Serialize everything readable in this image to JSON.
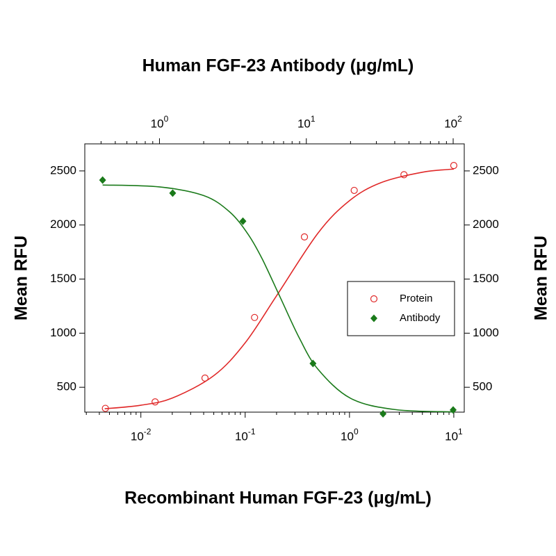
{
  "chart_data": {
    "type": "scatter",
    "xlabel": "Recombinant Human FGF-23 (μg/mL)",
    "x2label": "Human FGF-23 Antibody (μg/mL)",
    "ylabel": "Mean RFU",
    "y2label": "Mean RFU",
    "xscale": "log",
    "x2scale": "log",
    "xlim": [
      0.0029,
      12.6
    ],
    "xticks": [
      {
        "value": 0.01,
        "label": "10^-2"
      },
      {
        "value": 0.1,
        "label": "10^-1"
      },
      {
        "value": 1,
        "label": "10^0"
      },
      {
        "value": 10,
        "label": "10^1"
      }
    ],
    "xminorticks": [
      0.003,
      0.004,
      0.005,
      0.006,
      0.007,
      0.008,
      0.009,
      0.02,
      0.03,
      0.04,
      0.05,
      0.06,
      0.07,
      0.08,
      0.09,
      0.2,
      0.3,
      0.4,
      0.5,
      0.6,
      0.7,
      0.8,
      0.9,
      2,
      3,
      4,
      5,
      6,
      7,
      8,
      9
    ],
    "x2lim": [
      0.31,
      119
    ],
    "x2ticks": [
      {
        "value": 1,
        "label": "10^0"
      },
      {
        "value": 10,
        "label": "10^1"
      },
      {
        "value": 100,
        "label": "10^2"
      }
    ],
    "x2minorticks": [
      0.4,
      0.5,
      0.6,
      0.7,
      0.8,
      0.9,
      2,
      3,
      4,
      5,
      6,
      7,
      8,
      9,
      20,
      30,
      40,
      50,
      60,
      70,
      80,
      90
    ],
    "ylim": [
      270,
      2750
    ],
    "yticks": [
      500,
      1000,
      1500,
      2000,
      2500
    ],
    "y2lim": [
      270,
      2750
    ],
    "y2ticks": [
      500,
      1000,
      1500,
      2000,
      2500
    ],
    "legend": "center right",
    "series": [
      {
        "name": "Protein",
        "color": "#e02828",
        "marker": "open-circle",
        "x": [
          0.00457,
          0.0137,
          0.0412,
          0.123,
          0.37,
          1.11,
          3.33,
          10
        ],
        "values": [
          305,
          365,
          585,
          1145,
          1890,
          2320,
          2465,
          2550
        ],
        "fit": {
          "x": [
            0.0045,
            0.01,
            0.02,
            0.05,
            0.1,
            0.2,
            0.5,
            1,
            2,
            5,
            10
          ],
          "values": [
            301,
            334,
            400,
            607,
            911,
            1346,
            1926,
            2225,
            2391,
            2488,
            2517
          ]
        }
      },
      {
        "name": "Antibody",
        "color": "#1a7a1a",
        "marker": "diamond",
        "axis": "x2",
        "x": [
          0.41,
          1.23,
          3.7,
          11.1,
          33.3,
          100
        ],
        "values": [
          2415,
          2295,
          2035,
          720,
          255,
          290
        ],
        "fit": {
          "x": [
            0.41,
            1,
            2,
            3,
            4,
            5,
            6.7,
            9,
            12,
            20,
            40,
            100
          ],
          "values": [
            2370,
            2352,
            2272,
            2122,
            1917,
            1688,
            1320,
            950,
            667,
            398,
            294,
            272
          ]
        }
      }
    ]
  }
}
